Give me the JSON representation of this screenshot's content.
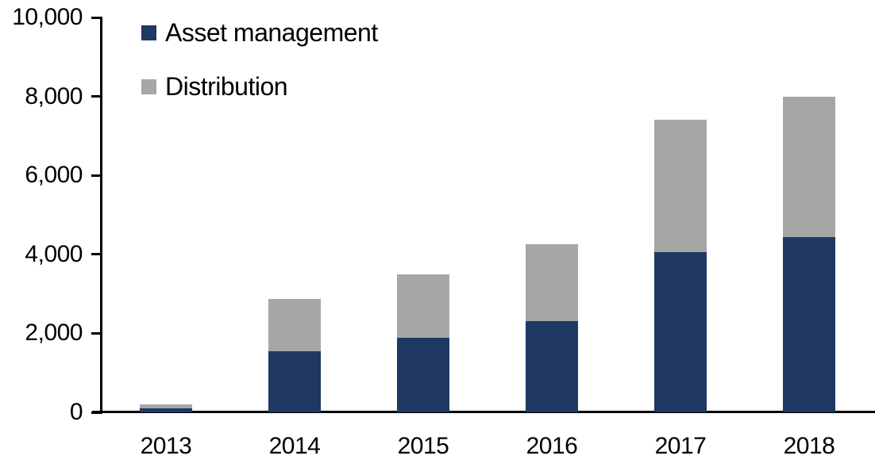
{
  "chart_data": {
    "type": "bar",
    "stacked": true,
    "title": "",
    "xlabel": "",
    "ylabel": "",
    "categories": [
      "2013",
      "2014",
      "2015",
      "2016",
      "2017",
      "2018"
    ],
    "series": [
      {
        "name": "Asset management",
        "color": "#1F3864",
        "values": [
          110,
          1550,
          1890,
          2310,
          4050,
          4430
        ]
      },
      {
        "name": "Distribution",
        "color": "#A6A6A6",
        "values": [
          85,
          1320,
          1610,
          1940,
          3350,
          3570
        ]
      }
    ],
    "totals": [
      195,
      2870,
      3500,
      4250,
      7400,
      8000
    ],
    "ylim": [
      0,
      10000
    ],
    "ytick_step": 2000,
    "ytick_labels": [
      "0",
      "2,000",
      "4,000",
      "6,000",
      "8,000",
      "10,000"
    ],
    "grid": false,
    "legend_position": "top-left-inside",
    "axis_color": "#000000",
    "text_color": "#000000",
    "background_color": "#FFFFFF"
  }
}
